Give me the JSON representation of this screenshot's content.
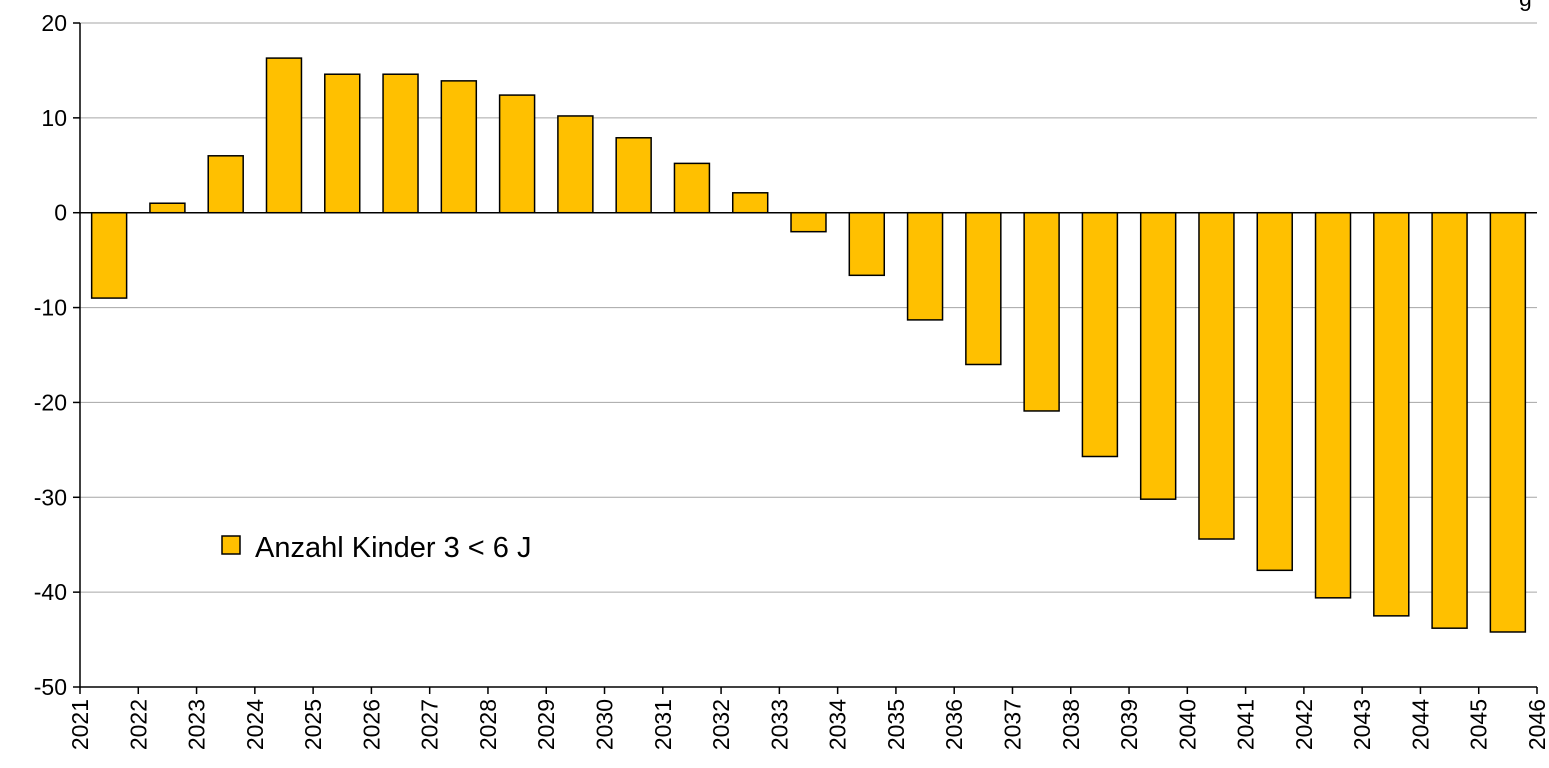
{
  "corner_text": "g",
  "legend_text": "Anzahl Kinder 3 < 6 J",
  "colors": {
    "bar": "#ffc000",
    "grid": "#a6a6a6",
    "axis": "#000000"
  },
  "chart_data": {
    "type": "bar",
    "title": "",
    "xlabel": "",
    "ylabel": "",
    "ylim": [
      -50,
      20
    ],
    "yticks": [
      "20",
      "10",
      "0",
      "-10",
      "-20",
      "-30",
      "-40",
      "-50"
    ],
    "ytick_values": [
      20,
      10,
      0,
      -10,
      -20,
      -30,
      -40,
      -50
    ],
    "xticks": [
      "2021",
      "2022",
      "2023",
      "2024",
      "2025",
      "2026",
      "2027",
      "2028",
      "2029",
      "2030",
      "2031",
      "2032",
      "2033",
      "2034",
      "2035",
      "2036",
      "2037",
      "2038",
      "2039",
      "2040",
      "2041",
      "2042",
      "2043",
      "2044",
      "2045",
      "2046"
    ],
    "grid": true,
    "legend_position": "left",
    "categories": [
      "2022",
      "2023",
      "2024",
      "2025",
      "2026",
      "2027",
      "2028",
      "2029",
      "2030",
      "2031",
      "2032",
      "2033",
      "2034",
      "2035",
      "2036",
      "2037",
      "2038",
      "2039",
      "2040",
      "2041",
      "2042",
      "2043",
      "2044",
      "2045",
      "2046"
    ],
    "series": [
      {
        "name": "Anzahl Kinder 3 < 6 J",
        "values": [
          -9.0,
          1.0,
          6.0,
          16.3,
          14.6,
          14.6,
          13.9,
          12.4,
          10.2,
          7.9,
          5.2,
          2.1,
          -2.0,
          -6.6,
          -11.3,
          -16.0,
          -20.9,
          -25.7,
          -30.2,
          -34.4,
          -37.7,
          -40.6,
          -42.5,
          -43.8,
          -44.2
        ]
      }
    ]
  }
}
